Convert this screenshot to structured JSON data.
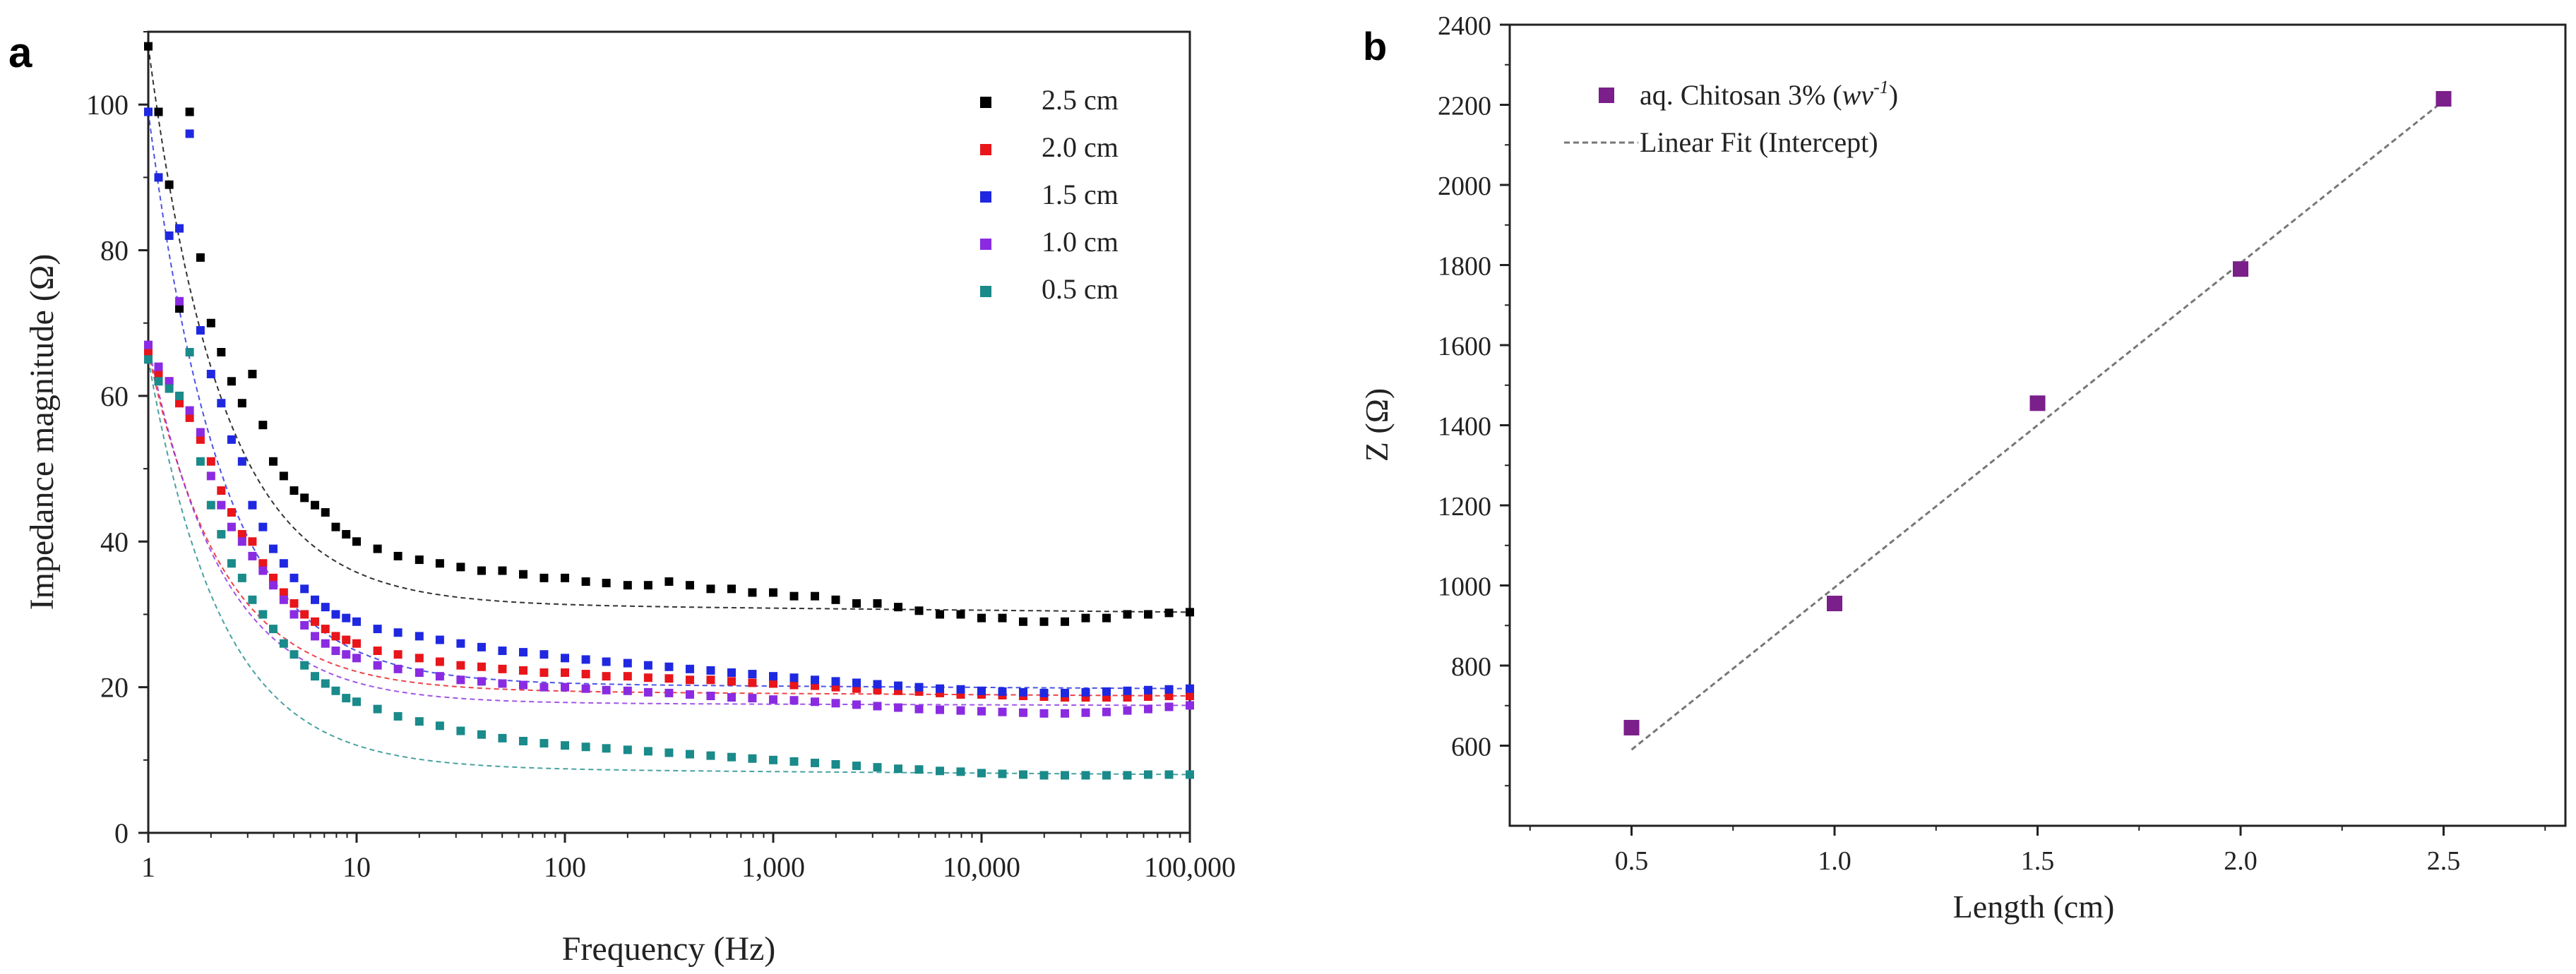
{
  "chart_data": [
    {
      "id": "a",
      "panel_label": "a",
      "type": "scatter",
      "title": "",
      "xlabel": "Frequency (Hz)",
      "ylabel": "Impedance magnitude (Ω)",
      "xscale": "log",
      "xlim": [
        1,
        100000
      ],
      "ylim": [
        0,
        110
      ],
      "xticks": [
        1,
        10,
        100,
        1000,
        10000,
        100000
      ],
      "xtick_labels": [
        "1",
        "10",
        "100",
        "1,000",
        "10,000",
        "100,000"
      ],
      "yticks": [
        0,
        20,
        40,
        60,
        80,
        100
      ],
      "ytick_labels": [
        "0",
        "20",
        "40",
        "60",
        "80",
        "100"
      ],
      "legend_position": "top-right",
      "fit_lines": "dashed exponential-decay fits per series",
      "series": [
        {
          "name": "2.5 cm",
          "color": "#000000",
          "x": [
            1,
            1.12,
            1.26,
            1.41,
            1.58,
            1.78,
            2,
            2.24,
            2.51,
            2.82,
            3.16,
            3.55,
            3.98,
            4.47,
            5.01,
            5.62,
            6.31,
            7.08,
            7.94,
            8.91,
            10,
            12.6,
            15.8,
            20,
            25.1,
            31.6,
            39.8,
            50.1,
            63.1,
            79.4,
            100,
            126,
            158,
            200,
            251,
            316,
            398,
            501,
            631,
            794,
            1000,
            1259,
            1585,
            1995,
            2512,
            3162,
            3981,
            5012,
            6310,
            7943,
            10000,
            12589,
            15849,
            19953,
            25119,
            31623,
            39811,
            50119,
            63096,
            79433,
            100000
          ],
          "y": [
            108,
            99,
            89,
            72,
            99,
            79,
            70,
            66,
            62,
            59,
            63,
            56,
            51,
            49,
            47,
            46,
            45,
            44,
            42,
            41,
            40,
            39,
            38,
            37.5,
            37,
            36.5,
            36,
            36,
            35.5,
            35,
            35,
            34.5,
            34.3,
            34,
            34,
            34.5,
            34,
            33.5,
            33.5,
            33,
            33,
            32.5,
            32.5,
            32,
            31.5,
            31.5,
            31,
            30.5,
            30,
            30,
            29.5,
            29.5,
            29,
            29,
            29,
            29.5,
            29.5,
            30,
            30,
            30.2,
            30.3
          ]
        },
        {
          "name": "2.0 cm",
          "color": "#e8151b",
          "x": [
            1,
            1.12,
            1.26,
            1.41,
            1.58,
            1.78,
            2,
            2.24,
            2.51,
            2.82,
            3.16,
            3.55,
            3.98,
            4.47,
            5.01,
            5.62,
            6.31,
            7.08,
            7.94,
            8.91,
            10,
            12.6,
            15.8,
            20,
            25.1,
            31.6,
            39.8,
            50.1,
            63.1,
            79.4,
            100,
            126,
            158,
            200,
            251,
            316,
            398,
            501,
            631,
            794,
            1000,
            1259,
            1585,
            1995,
            2512,
            3162,
            3981,
            5012,
            6310,
            7943,
            10000,
            12589,
            15849,
            19953,
            25119,
            31623,
            39811,
            50119,
            63096,
            79433,
            100000
          ],
          "y": [
            66,
            63,
            62,
            59,
            57,
            54,
            51,
            47,
            44,
            41,
            40,
            37,
            35,
            33,
            31.5,
            30,
            29,
            28,
            27,
            26.5,
            26,
            25,
            24.5,
            24,
            23.5,
            23,
            22.8,
            22.5,
            22.3,
            22,
            22,
            21.8,
            21.5,
            21.5,
            21.3,
            21.2,
            21,
            21,
            20.8,
            20.6,
            20.5,
            20.3,
            20.2,
            20,
            19.8,
            19.6,
            19.5,
            19.4,
            19.2,
            19,
            19,
            18.9,
            18.8,
            18.7,
            18.6,
            18.6,
            18.6,
            18.6,
            18.7,
            18.8,
            18.8
          ]
        },
        {
          "name": "1.5 cm",
          "color": "#1f28e0",
          "x": [
            1,
            1.12,
            1.26,
            1.41,
            1.58,
            1.78,
            2,
            2.24,
            2.51,
            2.82,
            3.16,
            3.55,
            3.98,
            4.47,
            5.01,
            5.62,
            6.31,
            7.08,
            7.94,
            8.91,
            10,
            12.6,
            15.8,
            20,
            25.1,
            31.6,
            39.8,
            50.1,
            63.1,
            79.4,
            100,
            126,
            158,
            200,
            251,
            316,
            398,
            501,
            631,
            794,
            1000,
            1259,
            1585,
            1995,
            2512,
            3162,
            3981,
            5012,
            6310,
            7943,
            10000,
            12589,
            15849,
            19953,
            25119,
            31623,
            39811,
            50119,
            63096,
            79433,
            100000
          ],
          "y": [
            99,
            90,
            82,
            83,
            96,
            69,
            63,
            59,
            54,
            51,
            45,
            42,
            39,
            37,
            35,
            33.5,
            32,
            31,
            30,
            29.5,
            29,
            28,
            27.5,
            27,
            26.5,
            26,
            25.5,
            25,
            24.8,
            24.5,
            24,
            23.8,
            23.5,
            23.3,
            23,
            22.8,
            22.5,
            22.3,
            22,
            21.8,
            21.5,
            21.3,
            21,
            20.8,
            20.6,
            20.4,
            20.2,
            20,
            19.8,
            19.7,
            19.5,
            19.4,
            19.3,
            19.2,
            19.2,
            19.3,
            19.4,
            19.5,
            19.6,
            19.7,
            19.8
          ]
        },
        {
          "name": "1.0 cm",
          "color": "#8a2be2",
          "x": [
            1,
            1.12,
            1.26,
            1.41,
            1.58,
            1.78,
            2,
            2.24,
            2.51,
            2.82,
            3.16,
            3.55,
            3.98,
            4.47,
            5.01,
            5.62,
            6.31,
            7.08,
            7.94,
            8.91,
            10,
            12.6,
            15.8,
            20,
            25.1,
            31.6,
            39.8,
            50.1,
            63.1,
            79.4,
            100,
            126,
            158,
            200,
            251,
            316,
            398,
            501,
            631,
            794,
            1000,
            1259,
            1585,
            1995,
            2512,
            3162,
            3981,
            5012,
            6310,
            7943,
            10000,
            12589,
            15849,
            19953,
            25119,
            31623,
            39811,
            50119,
            63096,
            79433,
            100000
          ],
          "y": [
            67,
            64,
            62,
            73,
            58,
            55,
            49,
            45,
            42,
            40,
            38,
            36,
            34,
            32,
            30,
            28.5,
            27,
            26,
            25,
            24.5,
            24,
            23,
            22.5,
            22,
            21.5,
            21,
            20.8,
            20.5,
            20.3,
            20,
            20,
            19.8,
            19.6,
            19.5,
            19.3,
            19.2,
            19,
            18.8,
            18.6,
            18.5,
            18.3,
            18.2,
            18,
            17.8,
            17.6,
            17.4,
            17.2,
            17,
            16.9,
            16.8,
            16.7,
            16.6,
            16.5,
            16.4,
            16.4,
            16.5,
            16.6,
            16.8,
            17,
            17.3,
            17.5
          ]
        },
        {
          "name": "0.5 cm",
          "color": "#1a8a8a",
          "x": [
            1,
            1.12,
            1.26,
            1.41,
            1.58,
            1.78,
            2,
            2.24,
            2.51,
            2.82,
            3.16,
            3.55,
            3.98,
            4.47,
            5.01,
            5.62,
            6.31,
            7.08,
            7.94,
            8.91,
            10,
            12.6,
            15.8,
            20,
            25.1,
            31.6,
            39.8,
            50.1,
            63.1,
            79.4,
            100,
            126,
            158,
            200,
            251,
            316,
            398,
            501,
            631,
            794,
            1000,
            1259,
            1585,
            1995,
            2512,
            3162,
            3981,
            5012,
            6310,
            7943,
            10000,
            12589,
            15849,
            19953,
            25119,
            31623,
            39811,
            50119,
            63096,
            79433,
            100000
          ],
          "y": [
            65,
            62,
            61,
            60,
            66,
            51,
            45,
            41,
            37,
            35,
            32,
            30,
            28,
            26,
            24.5,
            23,
            21.5,
            20.5,
            19.5,
            18.5,
            18,
            17,
            16,
            15.3,
            14.7,
            14,
            13.5,
            13,
            12.6,
            12.3,
            12,
            11.8,
            11.6,
            11.4,
            11.2,
            11,
            10.8,
            10.6,
            10.4,
            10.2,
            10,
            9.8,
            9.6,
            9.4,
            9.2,
            9,
            8.8,
            8.7,
            8.5,
            8.4,
            8.2,
            8.1,
            8,
            7.9,
            7.9,
            7.9,
            7.9,
            7.9,
            8,
            8,
            8
          ]
        }
      ]
    },
    {
      "id": "b",
      "panel_label": "b",
      "type": "scatter",
      "title": "",
      "xlabel": "Length (cm)",
      "ylabel": "Z (Ω)",
      "xlim": [
        0.2,
        2.8
      ],
      "ylim": [
        400,
        2400
      ],
      "xticks": [
        0.5,
        1.0,
        1.5,
        2.0,
        2.5
      ],
      "xtick_labels": [
        "0.5",
        "1.0",
        "1.5",
        "2.0",
        "2.5"
      ],
      "yticks": [
        600,
        800,
        1000,
        1200,
        1400,
        1600,
        1800,
        2000,
        2200,
        2400
      ],
      "ytick_labels": [
        "600",
        "800",
        "1000",
        "1200",
        "1400",
        "1600",
        "1800",
        "2000",
        "2200",
        "2400"
      ],
      "legend_position": "top-left",
      "series": [
        {
          "name": "aq. Chitosan 3% (wv⁻¹)",
          "name_prefix": "aq. Chitosan 3% (",
          "name_italic": "wv",
          "name_sup": "-1",
          "name_suffix": ")",
          "color": "#7b1f8a",
          "x": [
            0.5,
            1.0,
            1.5,
            2.0,
            2.5
          ],
          "y": [
            645,
            955,
            1455,
            1790,
            2215
          ]
        }
      ],
      "fit": {
        "name": "Linear Fit (Intercept)",
        "x": [
          0.5,
          2.5
        ],
        "y": [
          590,
          2210
        ],
        "color": "#777777"
      }
    }
  ]
}
